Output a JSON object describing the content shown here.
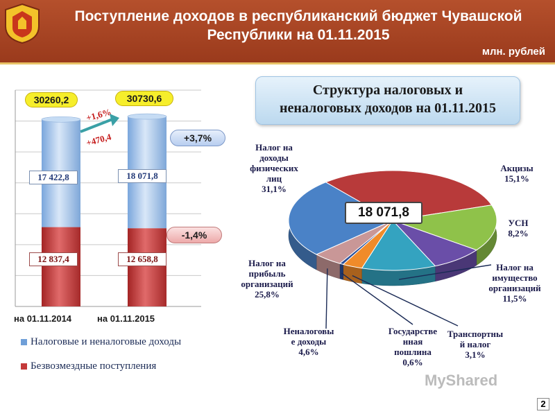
{
  "header": {
    "title_line1": "Поступление доходов в республиканский бюджет Чувашской",
    "title_line2": "Республики на 01.11.2015",
    "units": "млн. рублей"
  },
  "colors": {
    "header_bg": "#a84425",
    "tax_blue": "#9ec0e8",
    "grant_red": "#c43a3a",
    "badge_yellow": "#f6ee2b"
  },
  "chart_data": [
    {
      "type": "bar",
      "stacked": true,
      "categories": [
        "на 01.11.2014",
        "на 01.11.2015"
      ],
      "series": [
        {
          "name": "Налоговые и неналоговые доходы",
          "values": [
            17422.8,
            18071.8
          ],
          "labels": [
            "17 422,8",
            "18 071,8"
          ]
        },
        {
          "name": "Безвозмездные поступления",
          "values": [
            12837.4,
            12658.8
          ],
          "labels": [
            "12 837,4",
            "12 658,8"
          ]
        }
      ],
      "totals": [
        "30260,2",
        "30730,6"
      ],
      "annotations": {
        "total_growth_pct": "+1,6%",
        "total_growth_abs": "+470,4",
        "tax_change": "+3,7%",
        "grant_change": "-1,4%"
      },
      "ylim": [
        0,
        35000
      ],
      "grid": true
    },
    {
      "type": "pie",
      "title_line1": "Структура налоговых и",
      "title_line2": "неналоговых доходов на 01.11.2015",
      "total": "18 071,8",
      "slices": [
        {
          "name": "Налог на доходы физических лиц",
          "value": 31.1,
          "label": "31,1%",
          "color": "#b83a3a",
          "text_lines": [
            "Налог на",
            "доходы",
            "физических",
            "лиц",
            "31,1%"
          ]
        },
        {
          "name": "Акцизы",
          "value": 15.1,
          "label": "15,1%",
          "color": "#8fc24a",
          "text_lines": [
            "Акцизы",
            "15,1%"
          ]
        },
        {
          "name": "УСН",
          "value": 8.2,
          "label": "8,2%",
          "color": "#6a4ea8",
          "text_lines": [
            "УСН",
            "8,2%"
          ]
        },
        {
          "name": "Налог на имущество организаций",
          "value": 11.5,
          "label": "11,5%",
          "color": "#34a3c0",
          "text_lines": [
            "Налог на",
            "имущество",
            "организаций",
            "11,5%"
          ]
        },
        {
          "name": "Транспортный налог",
          "value": 3.1,
          "label": "3,1%",
          "color": "#f08b2a",
          "text_lines": [
            "Транспортны",
            "й налог",
            "3,1%"
          ]
        },
        {
          "name": "Государственная пошлина",
          "value": 0.6,
          "label": "0,6%",
          "color": "#2a4f9a",
          "text_lines": [
            "Государстве",
            "нная",
            "пошлина",
            "0,6%"
          ]
        },
        {
          "name": "Неналоговые доходы",
          "value": 4.6,
          "label": "4,6%",
          "color": "#c99797",
          "text_lines": [
            "Неналоговы",
            "е доходы",
            "4,6%"
          ]
        },
        {
          "name": "Налог на прибыль организаций",
          "value": 25.8,
          "label": "25,8%",
          "color": "#4a82c7",
          "text_lines": [
            "Налог на",
            "прибыль",
            "организаций",
            "25,8%"
          ]
        }
      ]
    }
  ],
  "footer": {
    "watermark": "MyShared",
    "page_number": "2"
  }
}
